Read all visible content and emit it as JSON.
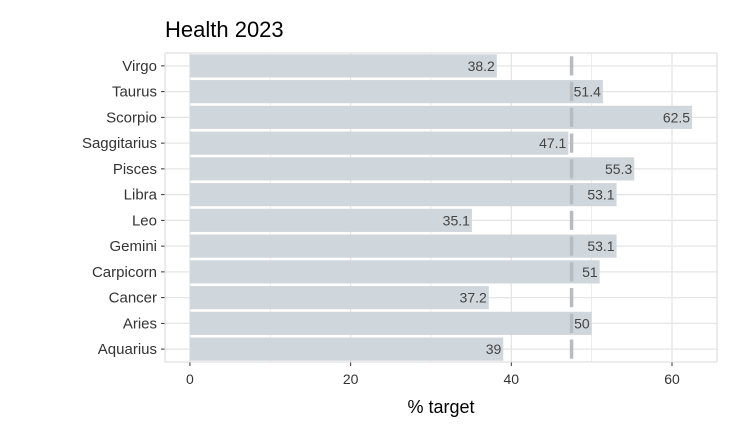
{
  "chart_data": {
    "type": "bar",
    "orientation": "horizontal",
    "title": "Health 2023",
    "xlabel": "% target",
    "ylabel": "",
    "categories": [
      "Virgo",
      "Taurus",
      "Scorpio",
      "Saggitarius",
      "Pisces",
      "Libra",
      "Leo",
      "Gemini",
      "Carpicorn",
      "Cancer",
      "Aries",
      "Aquarius"
    ],
    "values": [
      38.2,
      51.4,
      62.5,
      47.1,
      55.3,
      53.1,
      35.1,
      53.1,
      51,
      37.2,
      50,
      39
    ],
    "value_labels": [
      "38.2",
      "51.4",
      "62.5",
      "47.1",
      "55.3",
      "53.1",
      "35.1",
      "53.1",
      "51",
      "37.2",
      "50",
      "39"
    ],
    "reference_line": 47.5,
    "xlim": [
      -3.1,
      65.6
    ],
    "xticks": [
      0,
      20,
      40,
      60
    ],
    "xtick_labels": [
      "0",
      "20",
      "40",
      "60"
    ],
    "grid": true,
    "legend": "none",
    "colors": {
      "bar": "#d0d7dc",
      "reference_line": "#b6bcc0",
      "grid": "#e5e5e5",
      "panel_border": "#d9d9d9"
    }
  }
}
